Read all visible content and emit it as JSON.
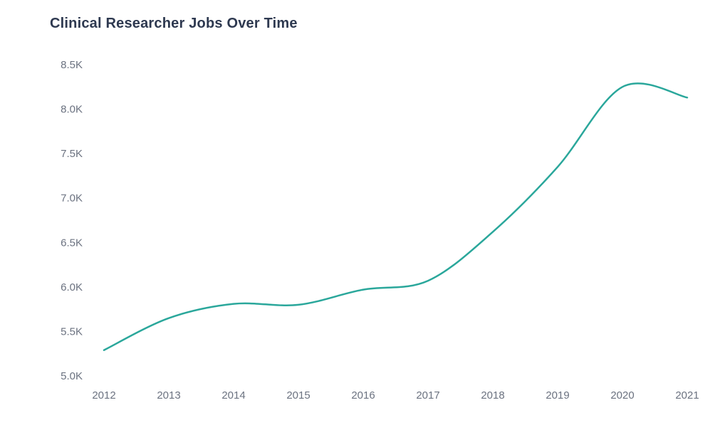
{
  "page": {
    "title": "Clinical Researcher Jobs Over Time"
  },
  "chart_data": {
    "type": "line",
    "title": "Clinical Researcher Jobs Over Time",
    "categories": [
      "2012",
      "2013",
      "2014",
      "2015",
      "2016",
      "2017",
      "2018",
      "2019",
      "2020",
      "2021"
    ],
    "values": [
      5290,
      5650,
      5810,
      5800,
      5970,
      6070,
      6620,
      7350,
      8250,
      8130
    ],
    "xlabel": "",
    "ylabel": "",
    "ylim": [
      5000,
      8500
    ],
    "ytick_values": [
      5000,
      5500,
      6000,
      6500,
      7000,
      7500,
      8000,
      8500
    ],
    "ytick_labels": [
      "5.0K",
      "5.5K",
      "6.0K",
      "6.5K",
      "7.0K",
      "7.5K",
      "8.0K",
      "8.5K"
    ],
    "grid": false,
    "legend": "none",
    "line_color": "#2aa79b",
    "smooth": true
  }
}
